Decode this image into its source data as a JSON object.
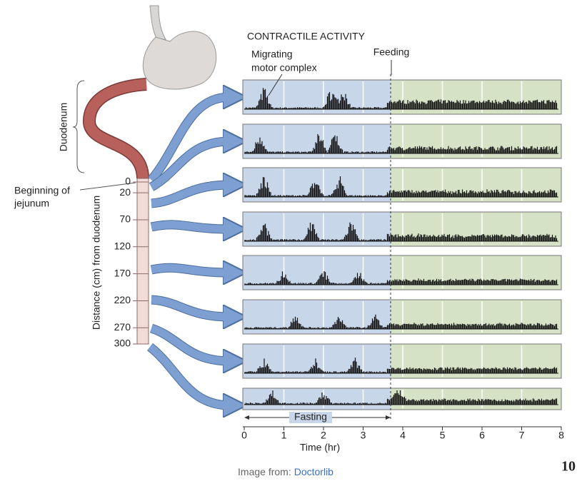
{
  "figure": {
    "title": "CONTRACTILE ACTIVITY",
    "annotations": {
      "mmc": [
        "Migrating",
        "motor complex"
      ],
      "feeding": "Feeding",
      "fasting": "Fasting",
      "duodenum": "Duodenum",
      "jejunum": [
        "Beginning of",
        "jejunum"
      ]
    },
    "distance_axis": {
      "label": "Distance (cm) from duodenum",
      "lim": [
        0,
        300
      ],
      "ticks": [
        0,
        20,
        70,
        120,
        170,
        220,
        270,
        300
      ]
    },
    "time_axis": {
      "label": "Time (hr)",
      "lim": [
        0,
        8
      ],
      "ticks": [
        0,
        1,
        2,
        3,
        4,
        5,
        6,
        7,
        8
      ]
    }
  },
  "caption": {
    "prefix": "Image from:",
    "source": "Doctorlib"
  },
  "page_number": "10"
}
